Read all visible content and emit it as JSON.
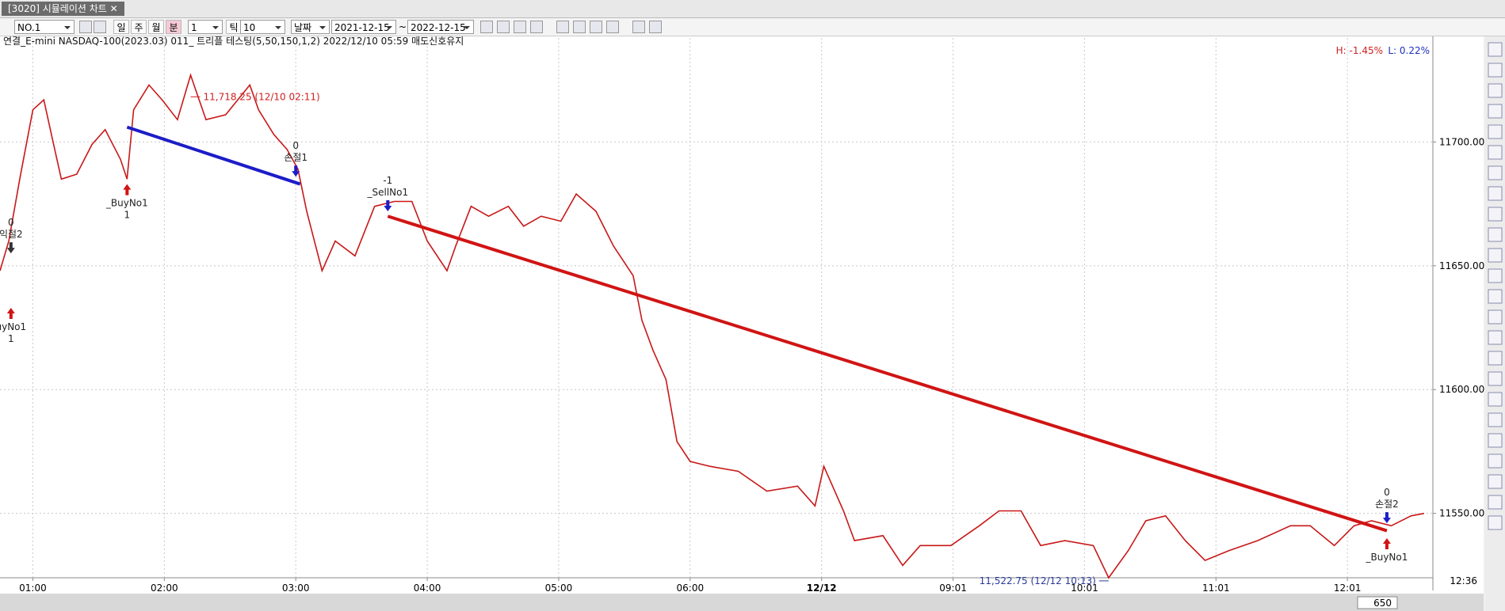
{
  "window": {
    "title": "[3020] 시뮬레이션 차트 ✕"
  },
  "toolbar": {
    "code": "NO.1",
    "periods": [
      "일",
      "주",
      "월",
      "분"
    ],
    "interval": "1",
    "tick_label": "틱",
    "tick_value": "10",
    "date_mode": "날짜",
    "start_date": "2021-12-15",
    "tilde": "~",
    "end_date": "2022-12-15"
  },
  "status": {
    "time": "12:36",
    "zoom": "650"
  },
  "chart_data": {
    "type": "line",
    "title": "연결_E-mini NASDAQ-100(2023.03) 011_ 트리플 테스팅(5,50,150,1,2)  2022/12/10 05:59 매도신호유지",
    "high_change": "H: -1.45%",
    "low_change": "L: 0.22%",
    "color": "#c81818",
    "grid": true,
    "x": [
      0,
      4,
      9,
      15,
      20,
      24,
      28,
      35,
      42,
      48,
      55,
      58,
      61,
      68,
      74,
      81,
      87,
      94,
      103,
      114,
      118,
      125,
      131,
      136,
      140,
      147,
      153,
      162,
      171,
      180,
      188,
      195,
      204,
      208,
      215,
      223,
      232,
      239,
      247,
      256,
      263,
      272,
      280,
      289,
      293,
      298,
      304,
      309,
      315,
      324,
      337,
      350,
      364,
      372,
      376,
      385,
      390,
      403,
      412,
      420,
      434,
      447,
      456,
      466,
      475,
      486,
      499,
      506,
      515,
      523,
      532,
      541,
      550,
      561,
      574,
      589,
      598,
      609,
      618,
      626,
      635,
      644,
      650
    ],
    "values": [
      11648,
      11660,
      11685,
      11713,
      11717,
      11701,
      11685,
      11687,
      11699,
      11705,
      11693,
      11685,
      11713,
      11723,
      11717,
      11709,
      11727,
      11709,
      11711,
      11723,
      11713,
      11703,
      11697,
      11689,
      11672,
      11648,
      11660,
      11654,
      11674,
      11676,
      11676,
      11660,
      11648,
      11658,
      11674,
      11670,
      11674,
      11666,
      11670,
      11668,
      11679,
      11672,
      11658,
      11646,
      11628,
      11616,
      11604,
      11579,
      11571,
      11569,
      11567,
      11559,
      11561,
      11553,
      11569,
      11551,
      11539,
      11541,
      11529,
      11537,
      11537,
      11545,
      11551,
      11551,
      11537,
      11539,
      11537,
      11524,
      11535,
      11547,
      11549,
      11539,
      11531,
      11535,
      11539,
      11545,
      11545,
      11537,
      11545,
      11547,
      11545,
      11549,
      11550
    ],
    "xlim": [
      0,
      654
    ],
    "xticks": [
      {
        "value": 15,
        "label": "01:00"
      },
      {
        "value": 75,
        "label": "02:00"
      },
      {
        "value": 135,
        "label": "03:00"
      },
      {
        "value": 195,
        "label": "04:00"
      },
      {
        "value": 255,
        "label": "05:00"
      },
      {
        "value": 315,
        "label": "06:00"
      },
      {
        "value": 375,
        "label": "12/12"
      },
      {
        "value": 435,
        "label": "09:01"
      },
      {
        "value": 495,
        "label": "10:01"
      },
      {
        "value": 555,
        "label": "11:01"
      },
      {
        "value": 615,
        "label": "12:01"
      }
    ],
    "ylim": [
      11524,
      11742
    ],
    "yticks": [
      {
        "value": 11550,
        "label": "11550.00"
      },
      {
        "value": 11600,
        "label": "11600.00"
      },
      {
        "value": 11650,
        "label": "11650.00"
      },
      {
        "value": 11700,
        "label": "11700.00"
      }
    ],
    "trend_lines": [
      {
        "color": "#1c1cc8",
        "x": [
          58,
          137
        ],
        "values": [
          11706,
          11683
        ]
      },
      {
        "color": "#d01414",
        "x": [
          177,
          633
        ],
        "values": [
          11670,
          11543
        ]
      }
    ],
    "annotations": [
      {
        "text": "11,718.25 (12/10 02:11)",
        "x": 87,
        "value": 11718.25,
        "color": "#d02020"
      },
      {
        "text": "11,522.75 (12/12 10:13)",
        "x": 506,
        "value": 11522.75,
        "color": "#2a3a9a"
      }
    ],
    "signals": [
      {
        "x": 5,
        "value": 11633,
        "side": "below",
        "color": "#d01414",
        "labels": [
          "uyNo1",
          "1"
        ]
      },
      {
        "x": 5,
        "value": 11655,
        "side": "above",
        "color": "#333333",
        "labels": [
          "0",
          "익절2"
        ]
      },
      {
        "x": 58,
        "value": 11683,
        "side": "below",
        "color": "#d01414",
        "labels": [
          "_BuyNo1",
          "1"
        ]
      },
      {
        "x": 135,
        "value": 11686,
        "side": "above",
        "color": "#1c1cc8",
        "labels": [
          "0",
          "손절1"
        ]
      },
      {
        "x": 177,
        "value": 11672,
        "side": "above",
        "color": "#1c1cc8",
        "labels": [
          "-1",
          "_SellNo1"
        ]
      },
      {
        "x": 633,
        "value": 11546,
        "side": "above",
        "color": "#1c1cc8",
        "labels": [
          "0",
          "손절2"
        ]
      },
      {
        "x": 633,
        "value": 11540,
        "side": "below",
        "color": "#d01414",
        "labels": [
          "_BuyNo1"
        ]
      }
    ]
  }
}
